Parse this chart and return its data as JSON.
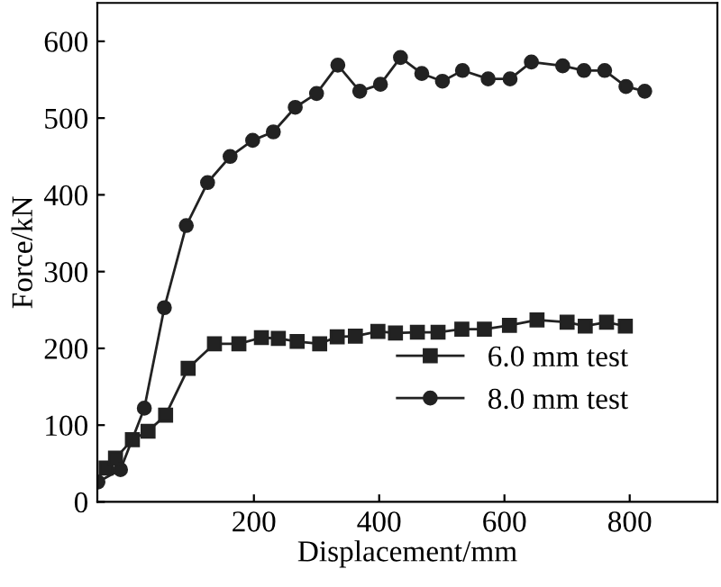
{
  "chart_data": {
    "type": "line",
    "xlabel": "Displacement/mm",
    "ylabel": "Force/kN",
    "xlim": [
      -50,
      940
    ],
    "ylim": [
      0,
      650
    ],
    "xticks": [
      200,
      400,
      600,
      800
    ],
    "yticks": [
      0,
      100,
      200,
      300,
      400,
      500,
      600
    ],
    "legend": "lower right",
    "grid": false,
    "line_style": "solid",
    "series": [
      {
        "name": "6.0 mm test",
        "color": "#222222",
        "marker": "square",
        "x": [
          -36,
          -21,
          6,
          31,
          59,
          95,
          137,
          176,
          212,
          239,
          269,
          305,
          333,
          362,
          398,
          426,
          461,
          494,
          532,
          568,
          608,
          652,
          700,
          729,
          763,
          793
        ],
        "values": [
          44,
          57,
          81,
          92,
          113,
          174,
          206,
          206,
          214,
          213,
          209,
          206,
          215,
          216,
          222,
          220,
          221,
          221,
          225,
          225,
          230,
          237,
          234,
          229,
          234,
          229
        ]
      },
      {
        "name": "8.0 mm test",
        "color": "#222222",
        "marker": "circle",
        "x": [
          -49,
          -13,
          25,
          57,
          92,
          126,
          162,
          198,
          231,
          266,
          300,
          334,
          369,
          402,
          434,
          468,
          501,
          533,
          574,
          609,
          643,
          693,
          727,
          760,
          794,
          824
        ],
        "values": [
          26,
          42,
          122,
          253,
          360,
          416,
          450,
          471,
          482,
          514,
          532,
          569,
          535,
          544,
          579,
          558,
          548,
          562,
          551,
          551,
          573,
          568,
          562,
          562,
          541,
          535
        ]
      }
    ]
  }
}
